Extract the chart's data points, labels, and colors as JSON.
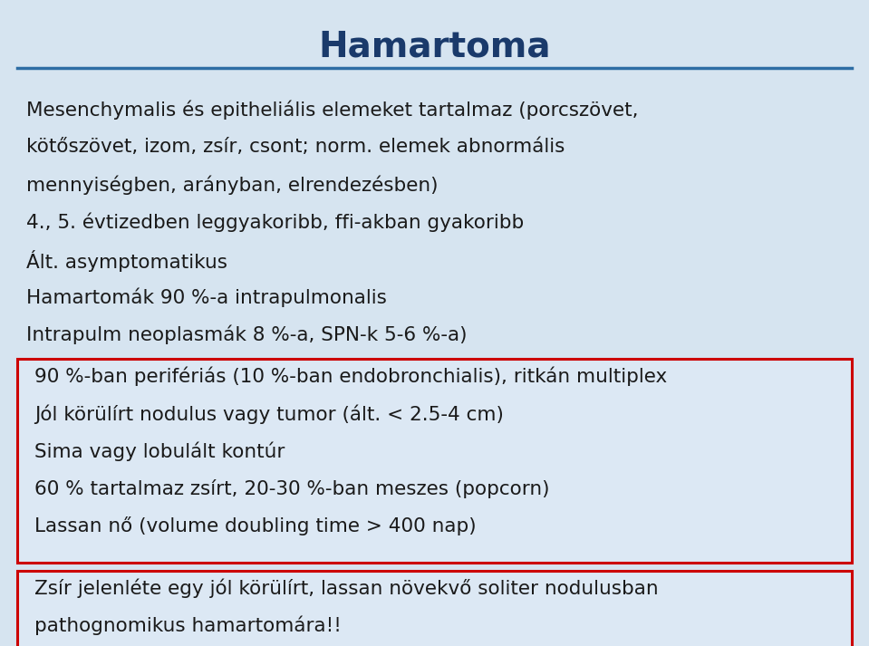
{
  "title": "Hamartoma",
  "title_color": "#1a3a6b",
  "bg_color": "#d6e4f0",
  "line_color": "#2e6da4",
  "text_color": "#1a1a1a",
  "bullet_lines": [
    "Mesenchymalis és epitheliális elemeket tartalmaz (porcszövet,",
    "kötőszövet, izom, zsír, csont; norm. elemek abnormális",
    "mennyiségben, arányban, elrendezésben)",
    "4., 5. évtizedben leggyakoribb, ffi-akban gyakoribb",
    "Ált. asymptomatikus",
    "Hamartomák 90 %-a intrapulmonalis",
    "Intrapulm neoplasmák 8 %-a, SPN-k 5-6 %-a)"
  ],
  "box1_lines": [
    "90 %-ban perifériás (10 %-ban endobronchialis), ritkán multiplex",
    "Jól körülírt nodulus vagy tumor (ált. < 2.5-4 cm)",
    "Sima vagy lobulált kontúr",
    "60 % tartalmaz zsírt, 20-30 %-ban meszes (popcorn)",
    "Lassan nő (volume doubling time > 400 nap)"
  ],
  "box2_lines": [
    "Zsír jelenléte egy jól körülírt, lassan növekvő soliter nodulusban",
    "pathognomikus hamartomára!!"
  ],
  "box_border_color": "#cc0000",
  "box_bg_color": "#dce8f4",
  "figsize": [
    9.59,
    7.13
  ],
  "dpi": 100
}
